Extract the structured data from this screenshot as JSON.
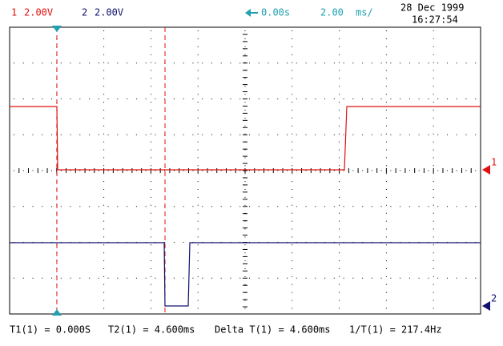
{
  "header": {
    "ch1_label": "1",
    "ch1_scale": "2.00V",
    "ch2_label": "2",
    "ch2_scale": "2.00V",
    "delay": "0.00s",
    "timebase": "2.00",
    "timebase_unit": "ms/",
    "date": "28 Dec 1999",
    "time": "16:27:54"
  },
  "markers": {
    "ch1": "1",
    "ch2": "2"
  },
  "readout": {
    "t1": "T1(1) = 0.000S",
    "t2": "T2(1) = 4.600ms",
    "delta": "Delta T(1) = 4.600ms",
    "inverse": "1/T(1) = 217.4Hz"
  }
}
